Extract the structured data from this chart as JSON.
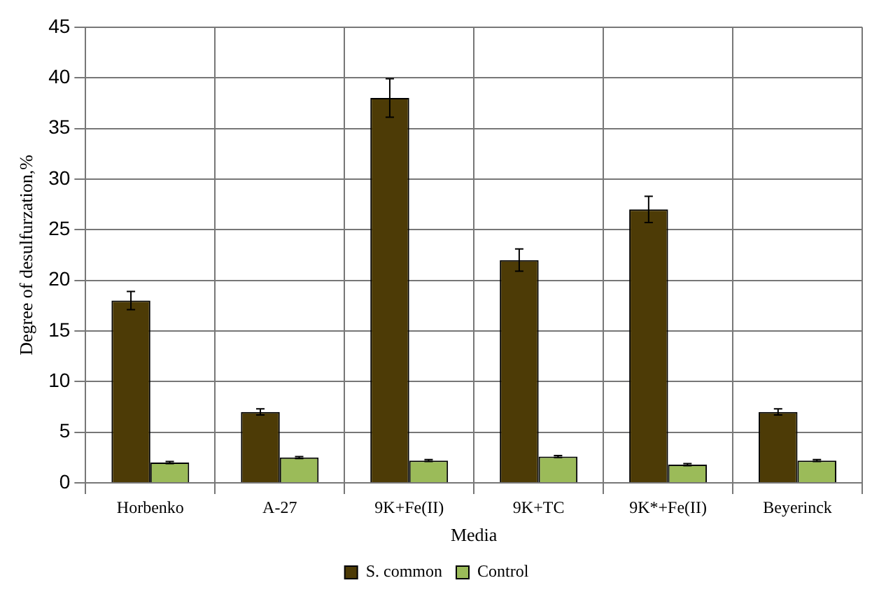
{
  "chart_data": {
    "type": "bar",
    "xlabel": "Media",
    "ylabel": "Degree of desulfurzation,%",
    "categories": [
      "Horbenko",
      "A-27",
      "9K+Fe(II)",
      "9K+TC",
      "9K*+Fe(II)",
      "Beyerinck"
    ],
    "series": [
      {
        "name": "S. common",
        "color": "#4d3b06",
        "values": [
          18,
          7,
          38,
          22,
          27,
          7
        ],
        "errors": [
          0.9,
          0.3,
          1.9,
          1.1,
          1.3,
          0.3
        ]
      },
      {
        "name": "Control",
        "color": "#9bbb59",
        "values": [
          2,
          2.5,
          2.2,
          2.6,
          1.8,
          2.2
        ],
        "errors": [
          0.1,
          0.1,
          0.1,
          0.1,
          0.1,
          0.1
        ]
      }
    ],
    "ylim": [
      0,
      45
    ],
    "yticks": [
      0,
      5,
      10,
      15,
      20,
      25,
      30,
      35,
      40,
      45
    ],
    "grid": true,
    "legend": "bottom"
  }
}
